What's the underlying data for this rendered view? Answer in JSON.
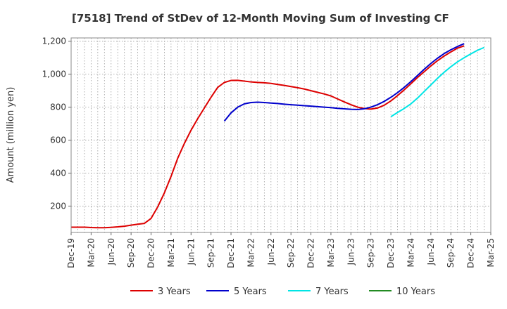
{
  "chart_data": {
    "type": "line",
    "title": "[7518]  Trend of StDev of 12-Month Moving Sum of Investing CF",
    "xlabel": "",
    "ylabel": "Amount (million yen)",
    "ylim": [
      40,
      1220
    ],
    "yticks": [
      200,
      400,
      600,
      800,
      1000,
      1200
    ],
    "ytick_labels": [
      "200",
      "400",
      "600",
      "800",
      "1,000",
      "1,200"
    ],
    "x_tick_labels": [
      "Dec-19",
      "Mar-20",
      "Jun-20",
      "Sep-20",
      "Dec-20",
      "Mar-21",
      "Jun-21",
      "Sep-21",
      "Dec-21",
      "Mar-22",
      "Jun-22",
      "Sep-22",
      "Dec-22",
      "Mar-23",
      "Jun-23",
      "Sep-23",
      "Dec-23",
      "Mar-24",
      "Jun-24",
      "Sep-24",
      "Dec-24",
      "Mar-25"
    ],
    "x_start": "Dec-19",
    "x_end": "Mar-25",
    "grid": true,
    "legend_position": "bottom",
    "series": [
      {
        "name": "3 Years",
        "color": "#dd0000",
        "points": [
          [
            "Dec-19",
            72
          ],
          [
            "Jan-20",
            72
          ],
          [
            "Feb-20",
            72
          ],
          [
            "Mar-20",
            70
          ],
          [
            "Apr-20",
            69
          ],
          [
            "May-20",
            69
          ],
          [
            "Jun-20",
            71
          ],
          [
            "Jul-20",
            74
          ],
          [
            "Aug-20",
            78
          ],
          [
            "Sep-20",
            84
          ],
          [
            "Oct-20",
            90
          ],
          [
            "Nov-20",
            95
          ],
          [
            "Dec-20",
            125
          ],
          [
            "Jan-21",
            195
          ],
          [
            "Feb-21",
            280
          ],
          [
            "Mar-21",
            380
          ],
          [
            "Apr-21",
            490
          ],
          [
            "May-21",
            580
          ],
          [
            "Jun-21",
            660
          ],
          [
            "Jul-21",
            730
          ],
          [
            "Aug-21",
            795
          ],
          [
            "Sep-21",
            860
          ],
          [
            "Oct-21",
            920
          ],
          [
            "Nov-21",
            950
          ],
          [
            "Dec-21",
            962
          ],
          [
            "Jan-22",
            963
          ],
          [
            "Feb-22",
            958
          ],
          [
            "Mar-22",
            953
          ],
          [
            "Apr-22",
            950
          ],
          [
            "May-22",
            948
          ],
          [
            "Jun-22",
            944
          ],
          [
            "Jul-22",
            938
          ],
          [
            "Aug-22",
            932
          ],
          [
            "Sep-22",
            925
          ],
          [
            "Oct-22",
            918
          ],
          [
            "Nov-22",
            910
          ],
          [
            "Dec-22",
            900
          ],
          [
            "Jan-23",
            890
          ],
          [
            "Feb-23",
            880
          ],
          [
            "Mar-23",
            868
          ],
          [
            "Apr-23",
            850
          ],
          [
            "May-23",
            832
          ],
          [
            "Jun-23",
            815
          ],
          [
            "Jul-23",
            800
          ],
          [
            "Aug-23",
            792
          ],
          [
            "Sep-23",
            788
          ],
          [
            "Oct-23",
            795
          ],
          [
            "Nov-23",
            812
          ],
          [
            "Dec-23",
            838
          ],
          [
            "Jan-24",
            870
          ],
          [
            "Feb-24",
            905
          ],
          [
            "Mar-24",
            942
          ],
          [
            "Apr-24",
            980
          ],
          [
            "May-24",
            1015
          ],
          [
            "Jun-24",
            1050
          ],
          [
            "Jul-24",
            1082
          ],
          [
            "Aug-24",
            1110
          ],
          [
            "Sep-24",
            1135
          ],
          [
            "Oct-24",
            1158
          ],
          [
            "Nov-24",
            1172
          ]
        ]
      },
      {
        "name": "5 Years",
        "color": "#0000cc",
        "points": [
          [
            "Nov-21",
            715
          ],
          [
            "Dec-21",
            765
          ],
          [
            "Jan-22",
            800
          ],
          [
            "Feb-22",
            820
          ],
          [
            "Mar-22",
            828
          ],
          [
            "Apr-22",
            830
          ],
          [
            "May-22",
            828
          ],
          [
            "Jun-22",
            825
          ],
          [
            "Jul-22",
            822
          ],
          [
            "Aug-22",
            818
          ],
          [
            "Sep-22",
            815
          ],
          [
            "Oct-22",
            812
          ],
          [
            "Nov-22",
            809
          ],
          [
            "Dec-22",
            806
          ],
          [
            "Jan-23",
            803
          ],
          [
            "Feb-23",
            800
          ],
          [
            "Mar-23",
            797
          ],
          [
            "Apr-23",
            793
          ],
          [
            "May-23",
            790
          ],
          [
            "Jun-23",
            787
          ],
          [
            "Jul-23",
            786
          ],
          [
            "Aug-23",
            790
          ],
          [
            "Sep-23",
            800
          ],
          [
            "Oct-23",
            815
          ],
          [
            "Nov-23",
            835
          ],
          [
            "Dec-23",
            860
          ],
          [
            "Jan-24",
            888
          ],
          [
            "Feb-24",
            920
          ],
          [
            "Mar-24",
            955
          ],
          [
            "Apr-24",
            992
          ],
          [
            "May-24",
            1030
          ],
          [
            "Jun-24",
            1065
          ],
          [
            "Jul-24",
            1097
          ],
          [
            "Aug-24",
            1125
          ],
          [
            "Sep-24",
            1148
          ],
          [
            "Oct-24",
            1168
          ],
          [
            "Nov-24",
            1185
          ]
        ]
      },
      {
        "name": "7 Years",
        "color": "#00e5e5",
        "points": [
          [
            "Dec-23",
            742
          ],
          [
            "Jan-24",
            768
          ],
          [
            "Feb-24",
            792
          ],
          [
            "Mar-24",
            820
          ],
          [
            "Apr-24",
            855
          ],
          [
            "May-24",
            895
          ],
          [
            "Jun-24",
            935
          ],
          [
            "Jul-24",
            975
          ],
          [
            "Aug-24",
            1012
          ],
          [
            "Sep-24",
            1045
          ],
          [
            "Oct-24",
            1075
          ],
          [
            "Nov-24",
            1100
          ],
          [
            "Dec-24",
            1123
          ],
          [
            "Jan-25",
            1145
          ],
          [
            "Feb-25",
            1162
          ]
        ]
      },
      {
        "name": "10 Years",
        "color": "#228b22",
        "points": []
      }
    ]
  }
}
